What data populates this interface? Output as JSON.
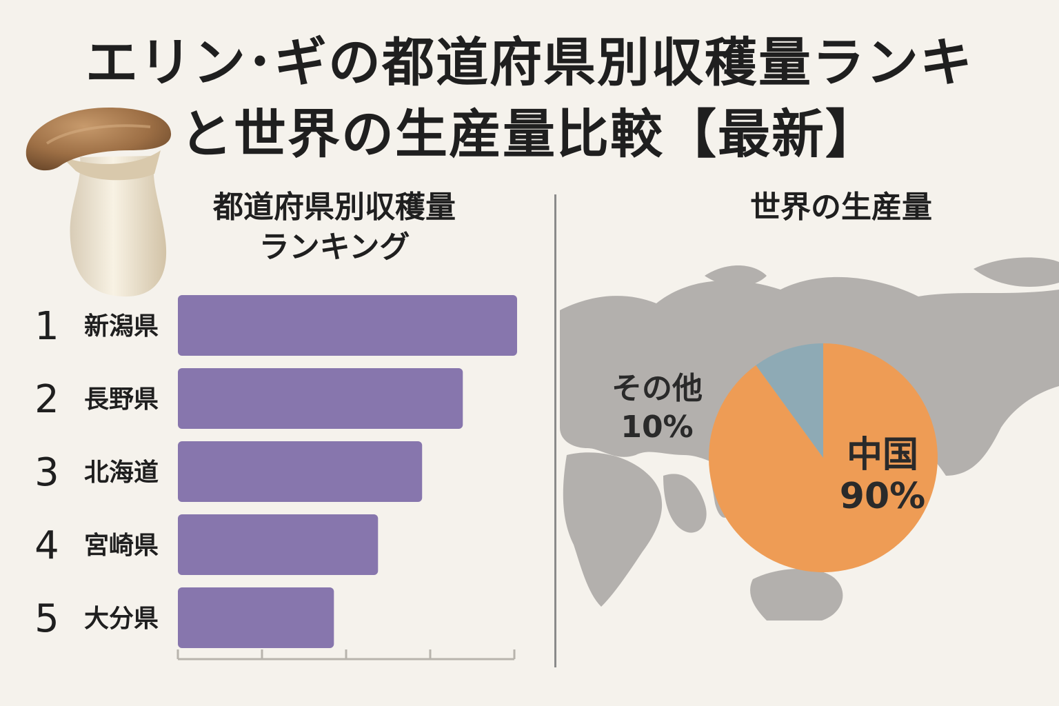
{
  "title": {
    "line1": "エリン･ギの都道府県別収穫量ランキ",
    "line2": "と世界の生産量比較【最新】"
  },
  "ranking_section": {
    "heading_line1": "都道府県別収穫量",
    "heading_line2": "ランキング"
  },
  "world_section": {
    "heading": "世界の生産量"
  },
  "colors": {
    "background": "#f5f2ec",
    "bar": "#8776ad",
    "china": "#ee9c55",
    "other": "#8eaab5",
    "map": "#b3b0ad"
  },
  "icons": [
    "mushroom-illustration",
    "world-map"
  ],
  "chart_data": [
    {
      "type": "bar",
      "orientation": "horizontal",
      "categories": [
        "新潟県",
        "長野県",
        "北海道",
        "宮崎県",
        "大分県"
      ],
      "ranks": [
        "1",
        "2",
        "3",
        "4",
        "5"
      ],
      "values": [
        100,
        84,
        72,
        59,
        46
      ],
      "xlim": [
        0,
        100
      ],
      "value_unit": "relative (no values printed)",
      "grid": false
    },
    {
      "type": "pie",
      "series": [
        {
          "label": "中国",
          "value": 90,
          "display": "90%"
        },
        {
          "label": "その他",
          "value": 10,
          "display": "10%"
        }
      ]
    }
  ]
}
